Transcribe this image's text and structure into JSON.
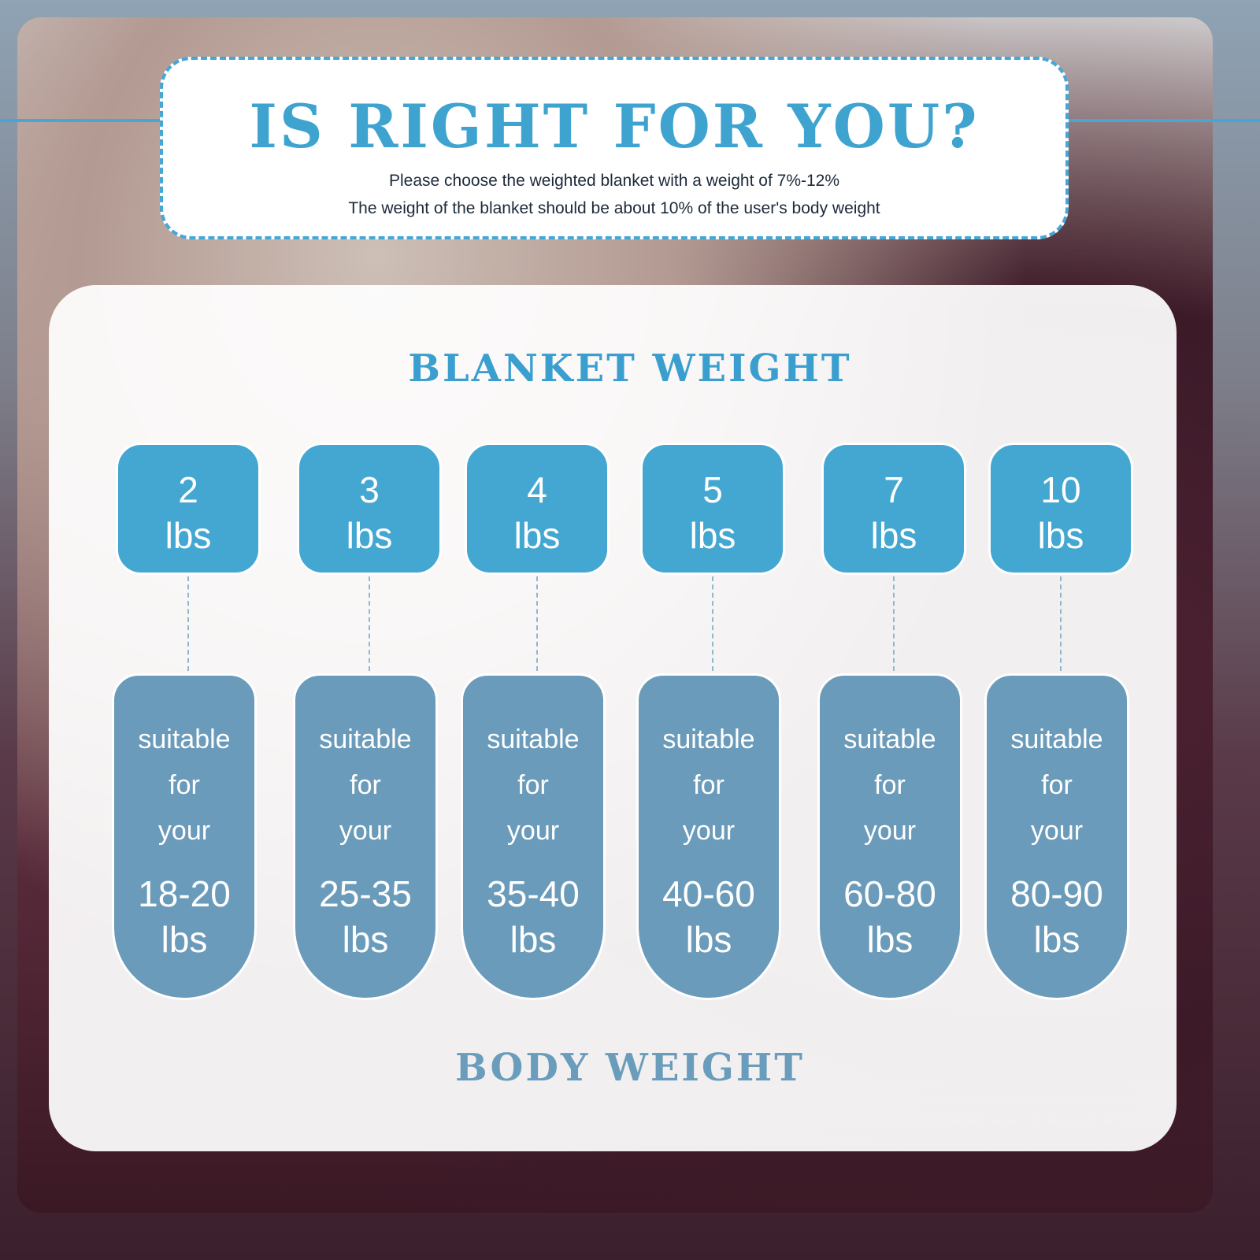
{
  "header": {
    "title": "IS RIGHT FOR YOU?",
    "line1": "Please choose the weighted blanket with a weight of 7%-12%",
    "line2": "The weight of the blanket should be about 10% of the user's body weight"
  },
  "sections": {
    "blanket_weight": "BLANKET WEIGHT",
    "body_weight": "BODY WEIGHT"
  },
  "suitable_words": [
    "suitable",
    "for",
    "your"
  ],
  "unit": "lbs",
  "columns": [
    {
      "blanket": "2",
      "body": "18-20"
    },
    {
      "blanket": "3",
      "body": "25-35"
    },
    {
      "blanket": "4",
      "body": "35-40"
    },
    {
      "blanket": "5",
      "body": "40-60"
    },
    {
      "blanket": "7",
      "body": "60-80"
    },
    {
      "blanket": "10",
      "body": "80-90"
    }
  ],
  "colors": {
    "accent": "#43a7d2",
    "body_box": "#6b9bba"
  }
}
